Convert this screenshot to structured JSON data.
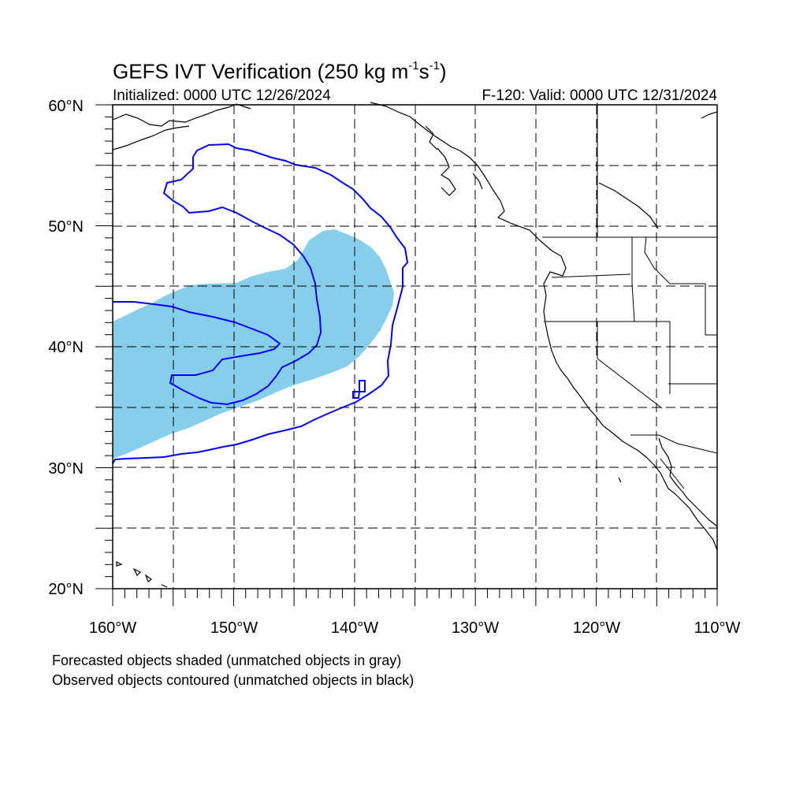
{
  "figure": {
    "title_text": "GEFS IVT Verification (250 kg m",
    "title_exp1": "-1",
    "title_mid": "s",
    "title_exp2": "-1",
    "title_end": ")",
    "initialized": "Initialized: 0000 UTC 12/26/2024",
    "valid": "F-120: Valid: 0000 UTC 12/31/2024",
    "notes": [
      "Forecasted objects shaded (unmatched objects in gray)",
      "Observed objects contoured (unmatched objects in black)"
    ]
  },
  "map": {
    "projection": "cylindrical equidistant",
    "lon_range": [
      -160,
      -110
    ],
    "lat_range": [
      20,
      60
    ],
    "grid": "dashed every 5 degrees",
    "lat_labels": [
      "60°N",
      "50°N",
      "40°N",
      "30°N",
      "20°N"
    ],
    "lon_labels": [
      "160°W",
      "150°W",
      "140°W",
      "130°W",
      "120°W",
      "110°W"
    ],
    "colors": {
      "forecast_fill": "#87ceeb",
      "observed_contour": "#0000ff",
      "coastline": "#000000",
      "grid": "#000000"
    }
  }
}
